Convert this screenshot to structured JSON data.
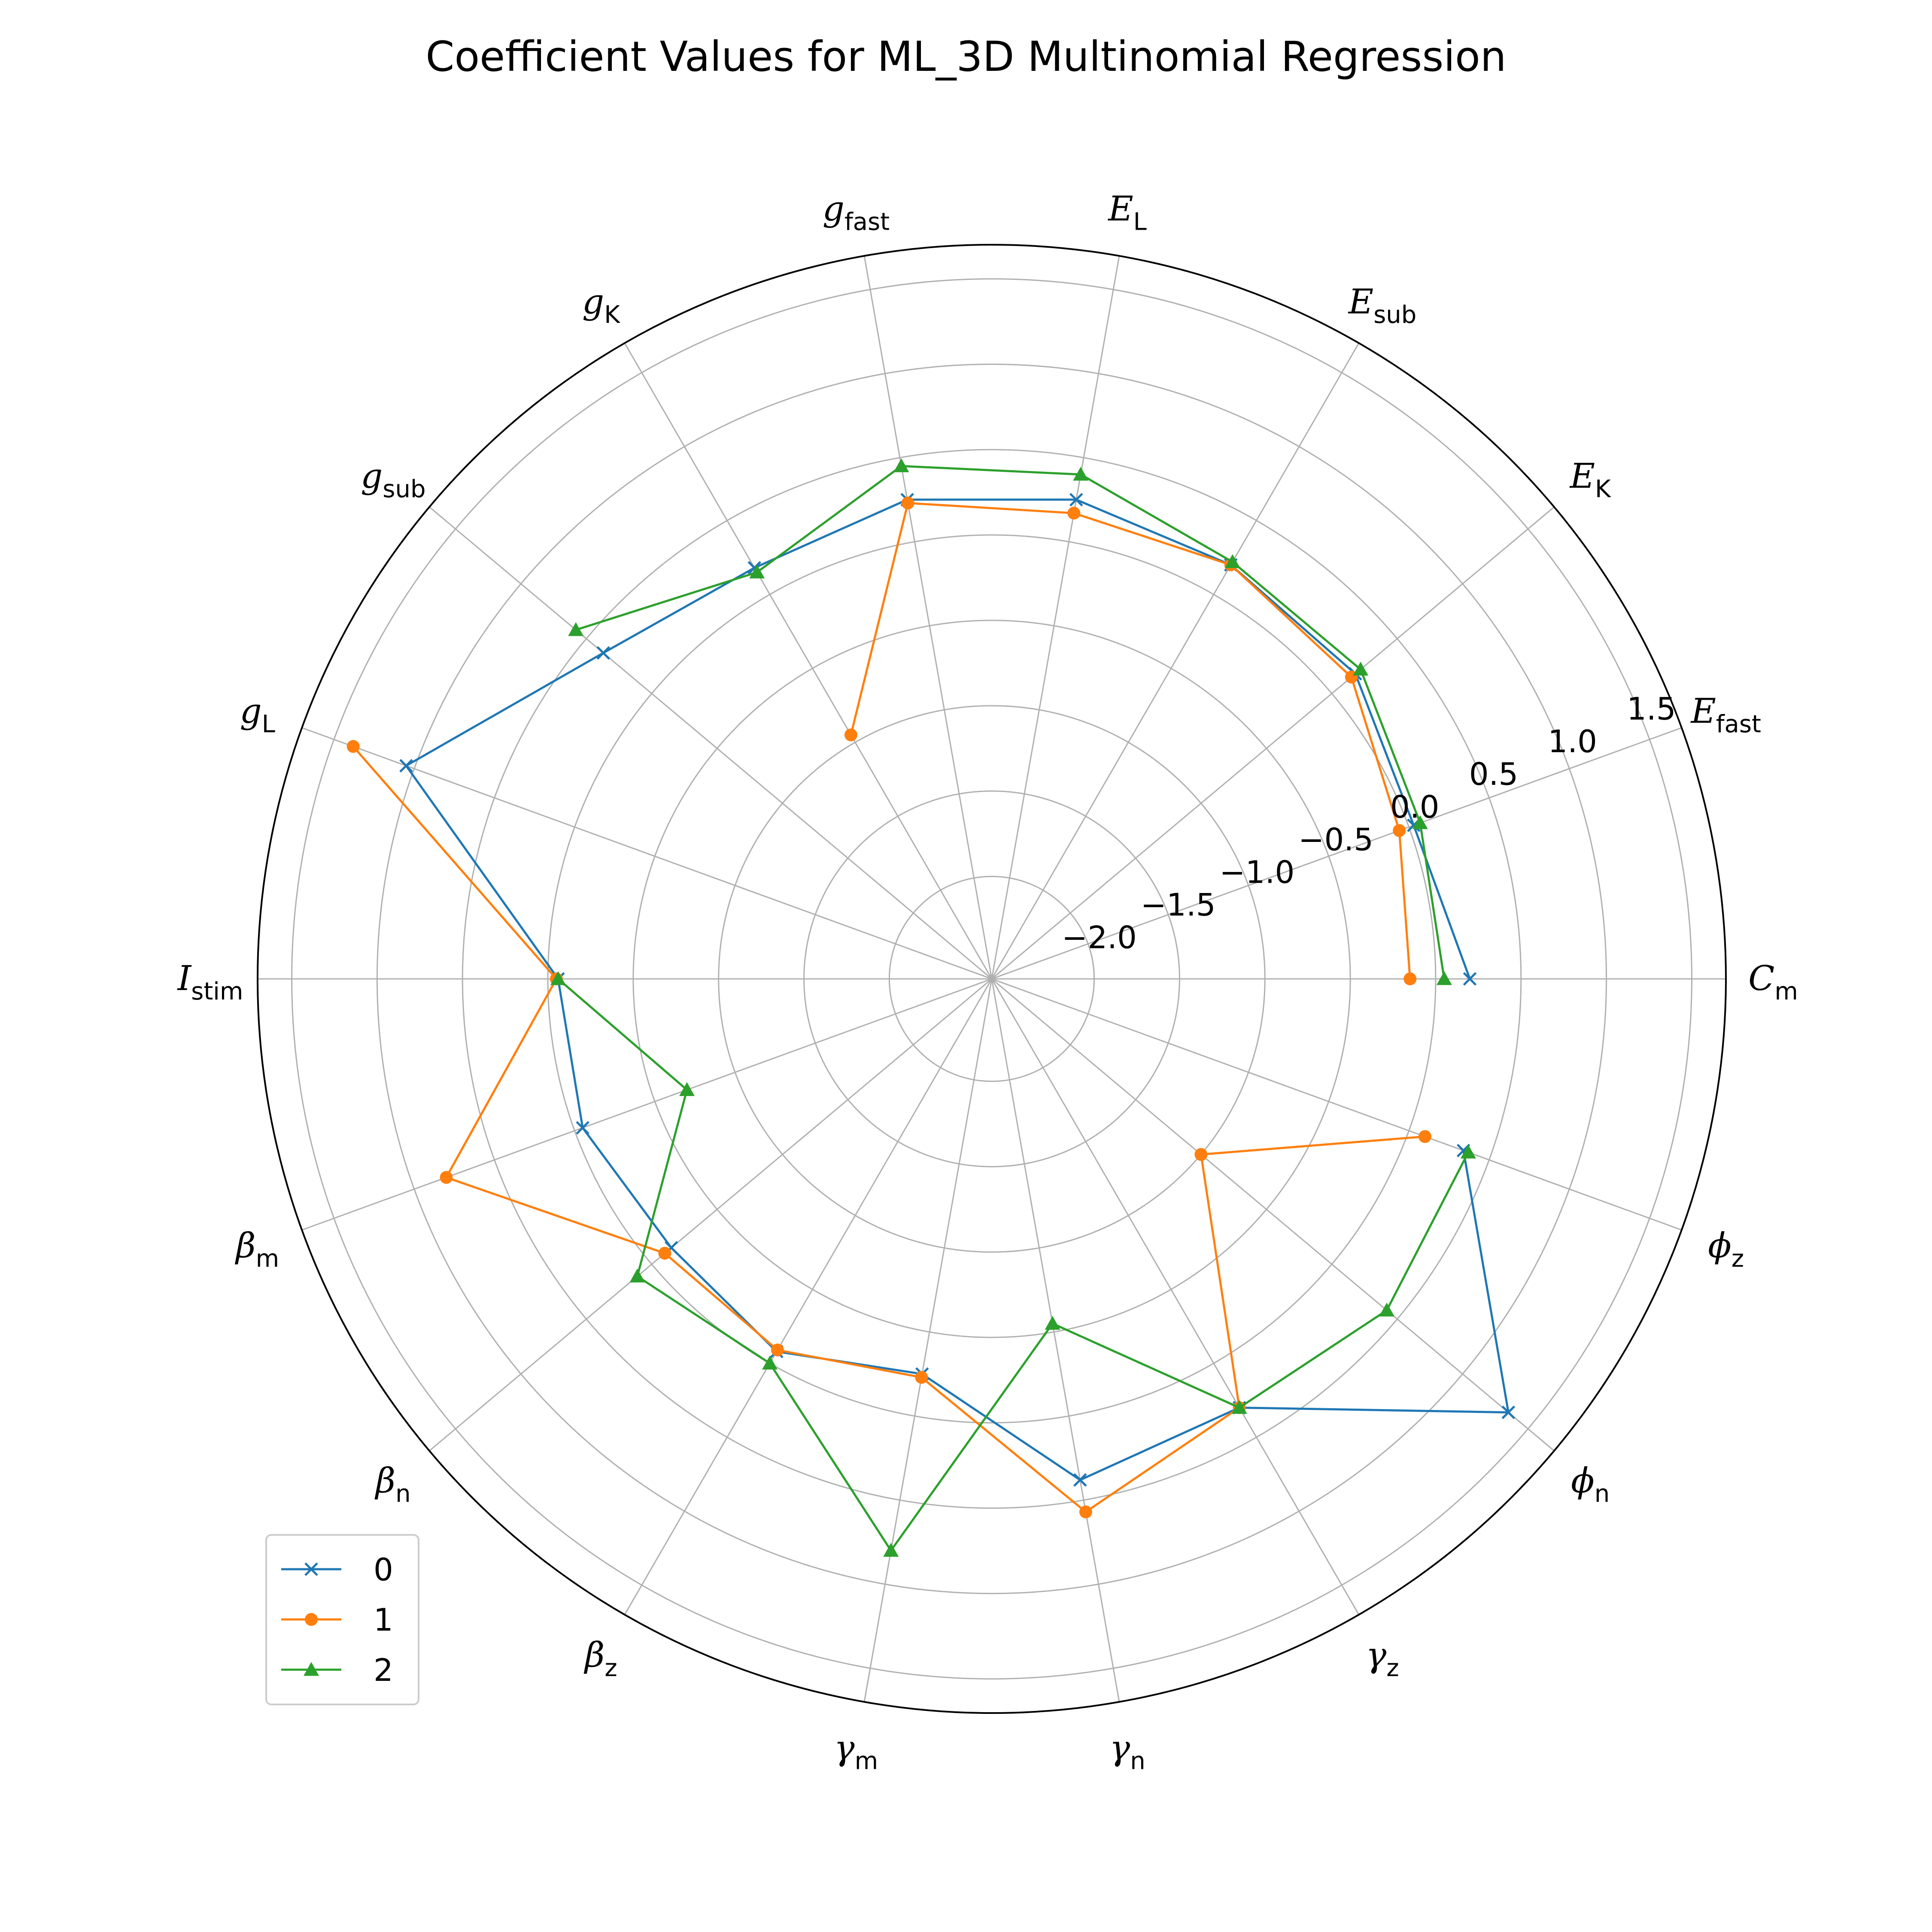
{
  "chart_data": {
    "type": "radar",
    "title": "Coefficient Values for ML_3D Multinomial Regression",
    "categories": [
      {
        "base": "C",
        "sub": "m",
        "subStyle": "italic"
      },
      {
        "base": "E",
        "sub": "fast",
        "subStyle": "roman"
      },
      {
        "base": "E",
        "sub": "K",
        "subStyle": "roman"
      },
      {
        "base": "E",
        "sub": "sub",
        "subStyle": "roman"
      },
      {
        "base": "E",
        "sub": "L",
        "subStyle": "roman"
      },
      {
        "base": "g",
        "sub": "fast",
        "subStyle": "roman"
      },
      {
        "base": "g",
        "sub": "K",
        "subStyle": "roman"
      },
      {
        "base": "g",
        "sub": "sub",
        "subStyle": "roman"
      },
      {
        "base": "g",
        "sub": "L",
        "subStyle": "roman"
      },
      {
        "base": "I",
        "sub": "stim",
        "subStyle": "roman"
      },
      {
        "base": "β",
        "sub": "m",
        "subStyle": "italic"
      },
      {
        "base": "β",
        "sub": "n",
        "subStyle": "italic"
      },
      {
        "base": "β",
        "sub": "z",
        "subStyle": "italic"
      },
      {
        "base": "γ",
        "sub": "m",
        "subStyle": "italic"
      },
      {
        "base": "γ",
        "sub": "n",
        "subStyle": "italic"
      },
      {
        "base": "γ",
        "sub": "z",
        "subStyle": "italic"
      },
      {
        "base": "ϕ",
        "sub": "n",
        "subStyle": "italic"
      },
      {
        "base": "ϕ",
        "sub": "z",
        "subStyle": "italic"
      }
    ],
    "series": [
      {
        "name": "0",
        "color": "#1f77b4",
        "marker": "x",
        "values": [
          0.2,
          0.03,
          0.18,
          0.2,
          0.25,
          0.25,
          0.18,
          0.37,
          1.05,
          -0.06,
          -0.05,
          -0.15,
          -0.08,
          -0.25,
          0.38,
          0.3,
          1.35,
          0.34
        ]
      },
      {
        "name": "1",
        "color": "#ff7f0e",
        "marker": "o",
        "values": [
          -0.15,
          -0.06,
          0.15,
          0.2,
          0.17,
          0.23,
          -0.95,
          null,
          1.38,
          -0.05,
          0.8,
          -0.1,
          -0.09,
          -0.23,
          0.57,
          0.3,
          -1.0,
          0.1
        ]
      },
      {
        "name": "2",
        "color": "#2ca02c",
        "marker": "^",
        "values": [
          0.05,
          0.07,
          0.22,
          0.22,
          0.4,
          0.45,
          0.15,
          0.58,
          null,
          -0.06,
          -0.7,
          0.11,
          0.0,
          0.8,
          -0.55,
          0.3,
          0.42,
          0.37
        ]
      }
    ],
    "r_ticks": [
      -2.0,
      -1.5,
      -1.0,
      -0.5,
      0.0,
      0.5,
      1.0,
      1.5
    ],
    "r_tick_labels": [
      "−2.0",
      "−1.5",
      "−1.0",
      "−0.5",
      "0.0",
      "0.5",
      "1.0",
      "1.5"
    ],
    "rlim": [
      -2.6,
      1.7
    ],
    "grid": true,
    "legend_position": "lower-left"
  }
}
